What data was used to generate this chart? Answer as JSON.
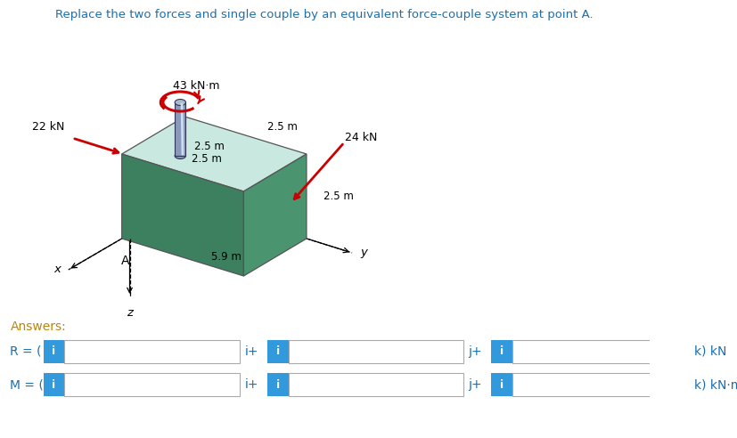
{
  "title": "Replace the two forces and single couple by an equivalent force-couple system at point A.",
  "title_color": "#1a6faf",
  "background_color": "#ffffff",
  "answers_label": "Answers:",
  "answers_color": "#b8860b",
  "R_label": "R = (",
  "M_label": "M = (",
  "unit_R": "k) kN",
  "unit_M": "k) kN·m",
  "box_fill": "#3399dd",
  "box_border": "#aaaaaa",
  "text_color": "#1a6faf",
  "force1": "22 kN",
  "force2": "24 kN",
  "couple": "43 kN·m",
  "dim_top_front": "2.5 m",
  "dim_top_right": "2.5 m",
  "dim_side_height": "2.5 m",
  "dim_cyl_offset": "2.5 m",
  "dim_bottom": "5.9 m",
  "axis_x": "x",
  "axis_y": "y",
  "axis_z": "z",
  "point_A": "A",
  "block_top_color": "#c8e8e0",
  "block_front_color": "#3d8060",
  "block_right_color": "#4a9470",
  "cyl_body_color": "#8899bb",
  "cyl_top_color": "#aabbcc",
  "couple_arrow_color": "#cc0000",
  "force_arrow_color": "#cc0000"
}
